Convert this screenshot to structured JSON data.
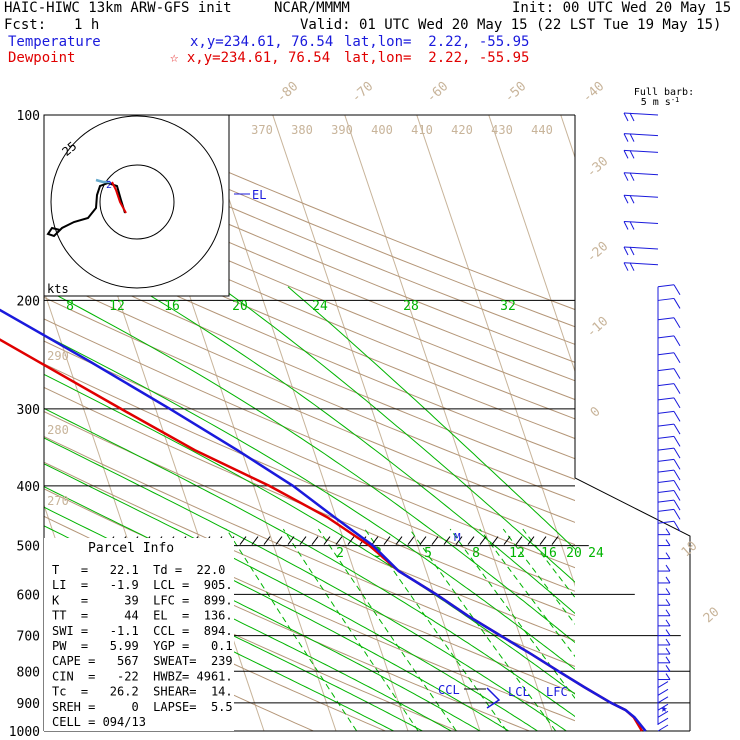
{
  "header": {
    "model": "HAIC-HIWC 13km ARW-GFS init",
    "center": "NCAR/MMMM",
    "init": "Init: 00 UTC Wed 20 May 15",
    "fcst_label": "Fcst:",
    "fcst_value": "1 h",
    "valid": "Valid: 01 UTC Wed 20 May 15 (22 LST Tue 19 May 15)",
    "temp_label": "Temperature",
    "temp_xy": "x,y=234.61, 76.54",
    "temp_latlon": "lat,lon=  2.22, -55.95",
    "dew_label": "Dewpoint",
    "dew_xy": "☆ x,y=234.61, 76.54",
    "dew_latlon": "lat,lon=  2.22, -55.95"
  },
  "barb_legend": {
    "line1": "Full barb:",
    "line2": "5 m s",
    "sup": "-1"
  },
  "hodo": {
    "ring_label": "25",
    "units": "kts"
  },
  "parcel_info": {
    "title": "Parcel Info",
    "rows": [
      "T   =   22.1  Td =  22.0",
      "LI  =   -1.9  LCL =  905.",
      "K   =     39  LFC =  899.",
      "TT  =     44  EL  =  136.",
      "SWI =   -1.1  CCL =  894.",
      "PW  =   5.99  YGP =   0.1",
      "CAPE =   567  SWEAT=  239",
      "CIN  =   -22  HWBZ= 4961.",
      "Tc  =   26.2  SHEAR=  14.",
      "SREH =     0  LAPSE=  5.5",
      "CELL = 094/13"
    ]
  },
  "colors": {
    "temperature": "#1a1adc",
    "dewpoint": "#e00000",
    "isotherm": "#c8b49a",
    "dry_adiabat": "#b49678",
    "moist_adiabat": "#00b400",
    "mixing_ratio": "#00b400"
  },
  "chart_data": {
    "type": "line",
    "skew_t": true,
    "pressure_ticks": [
      100,
      200,
      300,
      400,
      500,
      600,
      700,
      800,
      900,
      1000
    ],
    "isotherm_labels": [
      -80,
      -70,
      -60,
      -50,
      -40,
      -30,
      -20,
      -10,
      0,
      10,
      20,
      30,
      40
    ],
    "theta_labels": [
      370,
      380,
      390,
      400,
      410,
      420,
      430,
      440,
      290,
      280,
      270
    ],
    "moist_labels": [
      "8",
      "12",
      "16",
      "20",
      "24",
      "28",
      "32"
    ],
    "mixing_labels": [
      "2",
      "3",
      "5",
      "8",
      "12",
      "16",
      "20",
      "24"
    ],
    "annotations": {
      "el": "EL",
      "ccl": "CCL",
      "lcl": "LCL",
      "lfc": "LFC",
      "m": "M"
    },
    "series": [
      {
        "name": "Temperature",
        "pressure": [
          1000,
          950,
          925,
          900,
          850,
          800,
          750,
          700,
          650,
          600,
          550,
          500,
          450,
          400,
          350,
          300,
          250,
          200,
          175,
          150,
          136,
          125,
          115,
          108,
          100
        ],
        "temperature": [
          23.0,
          22.1,
          21.2,
          19.5,
          16.6,
          13.7,
          10.7,
          7.3,
          3.7,
          0.3,
          -3.8,
          -6.2,
          -10.2,
          -14.5,
          -20.6,
          -28.0,
          -37.2,
          -48.9,
          -56.7,
          -65.7,
          -73.8,
          -77.5,
          -80.0,
          -80.4,
          -80.2
        ]
      },
      {
        "name": "Dewpoint",
        "pressure": [
          1000,
          950,
          925,
          900,
          850,
          800,
          750,
          700,
          650,
          600,
          550,
          500,
          450,
          400,
          350,
          300,
          250,
          200,
          175,
          150,
          136,
          125,
          115,
          108,
          100
        ],
        "dewpoint": [
          22.5,
          22.0,
          21.2,
          19.5,
          16.6,
          13.7,
          10.7,
          7.3,
          3.7,
          0.3,
          -3.8,
          -6.7,
          -11.2,
          -17.8,
          -26.5,
          -34.8,
          -44.4,
          -56.1,
          -64.4,
          -73.9,
          -82.0,
          -88.0,
          -91.4,
          -91.2,
          -90.0
        ]
      }
    ],
    "wind_barbs_hpa": [
      100,
      108,
      115,
      125,
      136,
      150,
      165,
      175,
      190,
      200,
      215,
      230,
      245,
      260,
      275,
      290,
      305,
      320,
      335,
      350,
      365,
      380,
      395,
      410,
      425,
      440,
      460,
      480,
      500,
      525,
      550,
      575,
      600,
      625,
      650,
      675,
      700,
      725,
      750,
      775,
      800,
      825,
      850,
      875,
      900,
      925,
      950,
      975,
      1000
    ]
  }
}
